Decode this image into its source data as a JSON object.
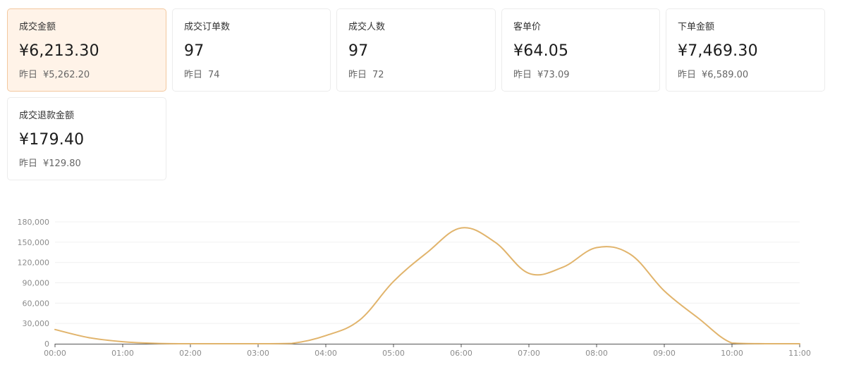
{
  "metrics": [
    {
      "label": "成交金额",
      "value": "¥6,213.30",
      "compare_label": "昨日",
      "compare_value": "¥5,262.20",
      "active": true
    },
    {
      "label": "成交订单数",
      "value": "97",
      "compare_label": "昨日",
      "compare_value": "74",
      "active": false
    },
    {
      "label": "成交人数",
      "value": "97",
      "compare_label": "昨日",
      "compare_value": "72",
      "active": false
    },
    {
      "label": "客单价",
      "value": "¥64.05",
      "compare_label": "昨日",
      "compare_value": "¥73.09",
      "active": false
    },
    {
      "label": "下单金额",
      "value": "¥7,469.30",
      "compare_label": "昨日",
      "compare_value": "¥6,589.00",
      "active": false
    },
    {
      "label": "成交退款金额",
      "value": "¥179.40",
      "compare_label": "昨日",
      "compare_value": "¥129.80",
      "active": false
    }
  ],
  "chart_data": {
    "type": "line",
    "title": "",
    "xlabel": "",
    "ylabel": "",
    "x": [
      "00:00",
      "00:30",
      "01:00",
      "01:30",
      "02:00",
      "02:30",
      "03:00",
      "03:30",
      "04:00",
      "04:30",
      "05:00",
      "05:30",
      "06:00",
      "06:30",
      "07:00",
      "07:30",
      "08:00",
      "08:30",
      "09:00",
      "09:30",
      "10:00",
      "10:30",
      "11:00"
    ],
    "x_ticks": [
      "00:00",
      "01:00",
      "02:00",
      "03:00",
      "04:00",
      "05:00",
      "06:00",
      "07:00",
      "08:00",
      "09:00",
      "10:00",
      "11:00"
    ],
    "y_ticks": [
      "0",
      "30,000",
      "60,000",
      "90,000",
      "120,000",
      "150,000",
      "180,000"
    ],
    "ylim": [
      0,
      180000
    ],
    "grid": true,
    "series": [
      {
        "values": [
          21000,
          9000,
          3000,
          500,
          0,
          0,
          0,
          500,
          12000,
          35000,
          92000,
          135000,
          171000,
          150000,
          104000,
          113000,
          142000,
          132000,
          78000,
          38000,
          1000,
          0,
          0
        ]
      }
    ],
    "colors": {
      "line": "#e1b46c",
      "grid": "#f0f0f0",
      "axis": "#555555",
      "tick_text": "#8c8c8c"
    }
  }
}
